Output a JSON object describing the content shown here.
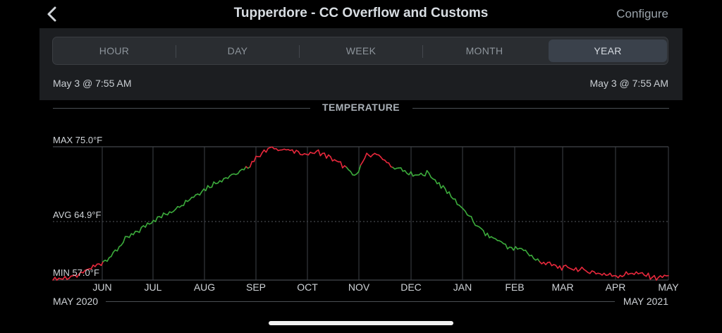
{
  "header": {
    "back_icon": "chevron-left-icon",
    "title": "Tupperdore - CC Overflow and Customs",
    "configure_label": "Configure"
  },
  "segments": {
    "items": [
      "HOUR",
      "DAY",
      "WEEK",
      "MONTH",
      "YEAR"
    ],
    "selected": "YEAR"
  },
  "range": {
    "start": "May 3 @ 7:55 AM",
    "end": "May 3 @ 7:55 AM"
  },
  "section_title": "TEMPERATURE",
  "years": {
    "start": "MAY 2020",
    "end": "MAY 2021"
  },
  "colors": {
    "background": "#000000",
    "panel": "#1c1e21",
    "in_range": "#3cab3c",
    "out_of_range": "#e8283c"
  },
  "chart_data": {
    "type": "line",
    "labels": {
      "max": "MAX 75.0°F",
      "avg": "AVG 64.9°F",
      "min": "MIN 57.0°F"
    },
    "months": [
      "JUN",
      "JUL",
      "AUG",
      "SEP",
      "OCT",
      "NOV",
      "DEC",
      "JAN",
      "FEB",
      "MAR",
      "APR",
      "MAY"
    ],
    "ylim": [
      57.0,
      75.0
    ],
    "avg": 64.9,
    "x_range": [
      "May 2020",
      "May 2021"
    ],
    "series": [
      {
        "values": [
          57.0,
          57.3,
          57.5,
          58.5,
          59.3,
          60.5,
          62.5,
          63.5,
          64.8,
          65.6,
          66.5,
          67.6,
          68.7,
          69.7,
          70.6,
          71.2,
          72.0,
          73.8,
          74.8,
          74.7,
          74.3,
          74.0,
          74.3,
          73.5,
          72.5,
          71.0,
          73.8,
          74.0,
          72.3,
          71.8,
          71.0,
          71.5,
          70.0,
          68.4,
          66.5,
          64.6,
          63.0,
          62.3,
          61.2,
          61.2,
          59.7,
          59.2,
          58.7,
          58.6,
          58.3,
          58.0,
          57.7,
          57.6,
          58.0,
          57.7,
          57.3,
          57.6
        ]
      }
    ]
  }
}
